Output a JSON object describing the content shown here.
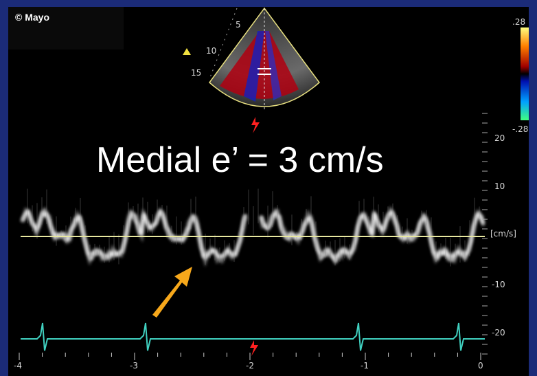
{
  "watermark": "© Mayo",
  "annotation": "Medial e’ = 3 cm/s",
  "depth_labels": [
    "5",
    "10",
    "15"
  ],
  "color_bar": {
    "top": ".28",
    "bottom": "-.28"
  },
  "velocity_scale": {
    "ticks": [
      "20",
      "10",
      "-10",
      "-20"
    ],
    "unit": "[cm/s]"
  },
  "time_scale": {
    "ticks": [
      "-4",
      "-3",
      "-2",
      "-1",
      "0"
    ]
  }
}
